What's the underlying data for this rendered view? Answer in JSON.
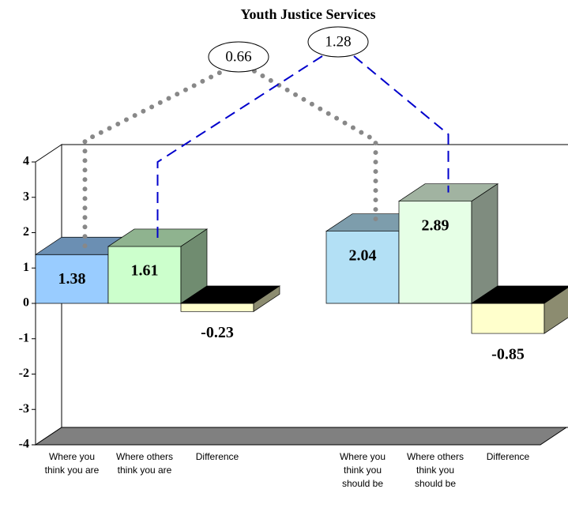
{
  "chart_data": {
    "type": "bar3d",
    "title": "Youth Justice Services",
    "categories": [
      "Where you think you are",
      "Where others think you are",
      "Difference",
      null,
      "Where you think you should be",
      "Where others think you should be",
      "Difference"
    ],
    "values": [
      1.38,
      1.61,
      -0.23,
      null,
      2.04,
      2.89,
      -0.85
    ],
    "colors": [
      "#99ccff",
      "#ccffcc",
      "#ffffcc",
      null,
      "#b3e0f5",
      "#e6ffe6",
      "#ffffcc"
    ],
    "ylim": [
      -4,
      4
    ],
    "yticks": [
      -4,
      -3,
      -2,
      -1,
      0,
      1,
      2,
      3,
      4
    ],
    "annotations": [
      {
        "value": 0.66,
        "connects": [
          0,
          4
        ],
        "color": "#888888",
        "style": "dotted"
      },
      {
        "value": 1.28,
        "connects": [
          1,
          5
        ],
        "color": "#0000cc",
        "style": "dashed"
      }
    ]
  }
}
